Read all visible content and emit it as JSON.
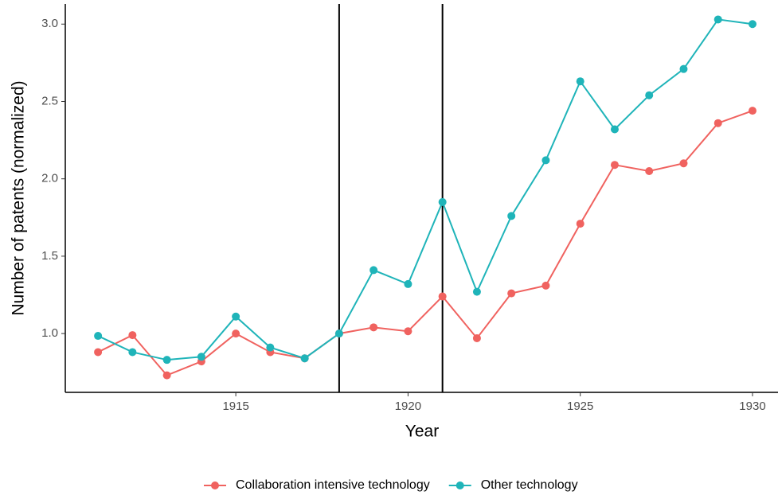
{
  "chart_data": {
    "type": "line",
    "x_label": "Year",
    "y_label": "Number of patents (normalized)",
    "x": [
      1911,
      1912,
      1913,
      1914,
      1915,
      1916,
      1917,
      1918,
      1919,
      1920,
      1921,
      1922,
      1923,
      1924,
      1925,
      1926,
      1927,
      1928,
      1929,
      1930
    ],
    "series": [
      {
        "name": "Collaboration intensive technology",
        "color": "#f0625f",
        "values": [
          0.88,
          0.99,
          0.73,
          0.82,
          1.0,
          0.88,
          0.84,
          1.0,
          1.04,
          1.015,
          1.24,
          0.97,
          1.26,
          1.31,
          1.71,
          2.09,
          2.05,
          2.1,
          2.36,
          2.44
        ]
      },
      {
        "name": "Other technology",
        "color": "#1fb4b9",
        "values": [
          0.985,
          0.88,
          0.83,
          0.85,
          1.11,
          0.91,
          0.84,
          1.0,
          1.41,
          1.32,
          1.85,
          1.27,
          1.76,
          2.12,
          2.63,
          2.32,
          2.54,
          2.71,
          3.03,
          3.0
        ]
      }
    ],
    "vlines": [
      1918,
      1921
    ],
    "xlim": [
      1910.05,
      1930.74
    ],
    "xticks": [
      1915,
      1920,
      1925,
      1930
    ],
    "ylim": [
      0.62,
      3.13
    ],
    "yticks": [
      {
        "value": 1,
        "label": "1.0"
      },
      1.5,
      {
        "value": 2,
        "label": "2.0"
      },
      2.5,
      {
        "value": 3,
        "label": "3.0"
      }
    ],
    "legend": "bottom",
    "grid": false
  }
}
